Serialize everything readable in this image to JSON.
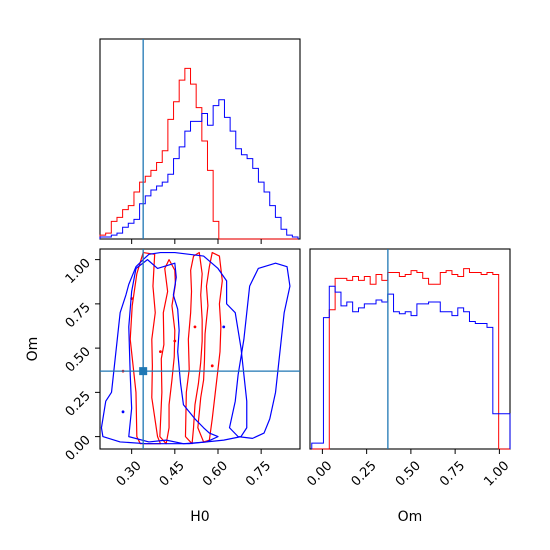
{
  "chart_data": {
    "type": "corner",
    "parameters": [
      "H0",
      "Om"
    ],
    "truth": {
      "H0": 0.34,
      "Om": 0.37
    },
    "colors": {
      "red": "#ff0000",
      "blue": "#0000ff",
      "truth": "#1f77b4"
    },
    "xlabels": {
      "H0": "H0",
      "Om": "Om"
    },
    "ylabel": "Om",
    "ranges": {
      "H0": [
        0.19,
        0.885
      ],
      "Om": [
        -0.07,
        1.06
      ]
    },
    "ticks": {
      "H0": [
        0.3,
        0.45,
        0.6,
        0.75
      ],
      "H0_labels": [
        "0.30",
        "0.45",
        "0.60",
        "0.75"
      ],
      "Om_x": [
        0.0,
        0.25,
        0.5,
        0.75,
        1.0
      ],
      "Om_x_labels": [
        "0.00",
        "0.25",
        "0.50",
        "0.75",
        "1.00"
      ],
      "Om_y": [
        0.0,
        0.25,
        0.5,
        0.75,
        1.0
      ],
      "Om_y_labels": [
        "0.00",
        "0.25",
        "0.50",
        "0.75",
        "1.00"
      ]
    },
    "hist_H0": {
      "bin_edges": [
        0.19,
        0.2097,
        0.2293,
        0.249,
        0.2686,
        0.2883,
        0.308,
        0.3276,
        0.3473,
        0.3669,
        0.3866,
        0.4063,
        0.4259,
        0.4456,
        0.4652,
        0.4849,
        0.5046,
        0.5242,
        0.5439,
        0.5635,
        0.5832,
        0.6029,
        0.6225,
        0.6422,
        0.6618,
        0.6815,
        0.7012,
        0.7208,
        0.7405,
        0.7601,
        0.7798,
        0.7995,
        0.8191,
        0.8388,
        0.8584,
        0.8781
      ],
      "red": [
        0.02,
        0.03,
        0.09,
        0.11,
        0.15,
        0.17,
        0.24,
        0.29,
        0.32,
        0.35,
        0.39,
        0.45,
        0.61,
        0.7,
        0.81,
        0.87,
        0.79,
        0.67,
        0.5,
        0.35,
        0.09,
        0.0,
        0.0,
        0.0,
        0.0,
        0.0,
        0.0,
        0.0,
        0.0,
        0.0,
        0.0,
        0.0,
        0.0,
        0.0,
        0.0
      ],
      "blue": [
        0.01,
        0.01,
        0.02,
        0.03,
        0.06,
        0.08,
        0.1,
        0.18,
        0.22,
        0.25,
        0.27,
        0.29,
        0.33,
        0.41,
        0.47,
        0.55,
        0.6,
        0.6,
        0.64,
        0.58,
        0.68,
        0.71,
        0.62,
        0.55,
        0.46,
        0.43,
        0.41,
        0.36,
        0.29,
        0.24,
        0.17,
        0.11,
        0.05,
        0.02,
        0.01
      ]
    },
    "hist_Om": {
      "bin_edges": [
        -0.06,
        -0.027,
        0.006,
        0.039,
        0.072,
        0.105,
        0.138,
        0.171,
        0.204,
        0.237,
        0.27,
        0.303,
        0.336,
        0.369,
        0.402,
        0.435,
        0.468,
        0.501,
        0.534,
        0.567,
        0.6,
        0.633,
        0.666,
        0.699,
        0.732,
        0.765,
        0.798,
        0.831,
        0.864,
        0.897,
        0.93,
        0.963,
        0.996,
        1.029,
        1.06
      ],
      "red": [
        0.0,
        0.0,
        0.0,
        0.71,
        0.87,
        0.87,
        0.86,
        0.88,
        0.86,
        0.88,
        0.84,
        0.89,
        0.86,
        0.9,
        0.9,
        0.88,
        0.89,
        0.91,
        0.9,
        0.87,
        0.84,
        0.84,
        0.9,
        0.91,
        0.89,
        0.88,
        0.92,
        0.9,
        0.9,
        0.89,
        0.9,
        0.89,
        0.0,
        0.0
      ],
      "blue": [
        0.03,
        0.03,
        0.67,
        0.83,
        0.8,
        0.73,
        0.75,
        0.7,
        0.72,
        0.74,
        0.74,
        0.76,
        0.75,
        0.79,
        0.7,
        0.69,
        0.7,
        0.68,
        0.74,
        0.74,
        0.75,
        0.75,
        0.7,
        0.7,
        0.68,
        0.72,
        0.7,
        0.65,
        0.64,
        0.64,
        0.62,
        0.18,
        0.18,
        0.18
      ]
    },
    "contours": {
      "red": [
        [
          [
            0.318,
            0.0
          ],
          [
            0.315,
            0.25
          ],
          [
            0.295,
            0.55
          ],
          [
            0.302,
            0.74
          ],
          [
            0.318,
            0.92
          ],
          [
            0.34,
            1.04
          ],
          [
            0.38,
            1.03
          ],
          [
            0.374,
            0.85
          ],
          [
            0.382,
            0.7
          ],
          [
            0.37,
            0.55
          ],
          [
            0.372,
            0.4
          ],
          [
            0.37,
            0.22
          ],
          [
            0.39,
            0.0
          ],
          [
            0.4,
            -0.04
          ],
          [
            0.33,
            -0.04
          ],
          [
            0.318,
            0.0
          ]
        ],
        [
          [
            0.398,
            0.0
          ],
          [
            0.405,
            0.25
          ],
          [
            0.403,
            0.44
          ],
          [
            0.412,
            0.52
          ],
          [
            0.41,
            0.7
          ],
          [
            0.425,
            0.82
          ],
          [
            0.415,
            0.95
          ],
          [
            0.43,
            1.0
          ],
          [
            0.45,
            0.94
          ],
          [
            0.452,
            0.86
          ],
          [
            0.44,
            0.74
          ],
          [
            0.45,
            0.6
          ],
          [
            0.448,
            0.45
          ],
          [
            0.44,
            0.32
          ],
          [
            0.43,
            0.18
          ],
          [
            0.43,
            0.05
          ],
          [
            0.42,
            -0.04
          ],
          [
            0.398,
            0.0
          ]
        ],
        [
          [
            0.487,
            0.0
          ],
          [
            0.49,
            0.25
          ],
          [
            0.5,
            0.38
          ],
          [
            0.497,
            0.55
          ],
          [
            0.505,
            0.7
          ],
          [
            0.508,
            0.82
          ],
          [
            0.505,
            0.94
          ],
          [
            0.515,
            1.02
          ],
          [
            0.535,
            1.04
          ],
          [
            0.545,
            0.92
          ],
          [
            0.54,
            0.8
          ],
          [
            0.545,
            0.66
          ],
          [
            0.545,
            0.54
          ],
          [
            0.54,
            0.42
          ],
          [
            0.532,
            0.3
          ],
          [
            0.52,
            0.18
          ],
          [
            0.515,
            0.05
          ],
          [
            0.51,
            -0.04
          ],
          [
            0.487,
            0.0
          ]
        ],
        [
          [
            0.53,
            0.05
          ],
          [
            0.54,
            0.22
          ],
          [
            0.55,
            0.32
          ],
          [
            0.553,
            0.43
          ],
          [
            0.555,
            0.58
          ],
          [
            0.565,
            0.74
          ],
          [
            0.56,
            0.85
          ],
          [
            0.57,
            0.96
          ],
          [
            0.58,
            1.04
          ],
          [
            0.605,
            1.02
          ],
          [
            0.615,
            0.88
          ],
          [
            0.605,
            0.75
          ],
          [
            0.61,
            0.62
          ],
          [
            0.607,
            0.48
          ],
          [
            0.6,
            0.38
          ],
          [
            0.59,
            0.24
          ],
          [
            0.58,
            0.1
          ],
          [
            0.57,
            -0.02
          ],
          [
            0.55,
            -0.03
          ],
          [
            0.53,
            0.05
          ]
        ]
      ],
      "blue": [
        [
          [
            0.29,
            0.0
          ],
          [
            0.3,
            0.16
          ],
          [
            0.295,
            0.35
          ],
          [
            0.29,
            0.62
          ],
          [
            0.3,
            0.82
          ],
          [
            0.315,
            0.95
          ],
          [
            0.355,
            1.0
          ],
          [
            0.39,
            0.95
          ],
          [
            0.45,
            0.98
          ],
          [
            0.455,
            0.9
          ],
          [
            0.445,
            0.8
          ],
          [
            0.46,
            0.72
          ],
          [
            0.465,
            0.6
          ],
          [
            0.46,
            0.48
          ],
          [
            0.47,
            0.3
          ],
          [
            0.48,
            0.18
          ],
          [
            0.52,
            0.1
          ],
          [
            0.55,
            0.05
          ],
          [
            0.57,
            0.02
          ],
          [
            0.6,
            0.0
          ],
          [
            0.56,
            -0.03
          ],
          [
            0.48,
            -0.04
          ],
          [
            0.42,
            -0.02
          ],
          [
            0.36,
            -0.03
          ],
          [
            0.29,
            0.0
          ]
        ],
        [
          [
            0.195,
            0.05
          ],
          [
            0.21,
            0.2
          ],
          [
            0.23,
            0.25
          ],
          [
            0.24,
            0.4
          ],
          [
            0.25,
            0.55
          ],
          [
            0.26,
            0.7
          ],
          [
            0.28,
            0.8
          ],
          [
            0.29,
            0.86
          ],
          [
            0.315,
            0.96
          ],
          [
            0.34,
            1.0
          ],
          [
            0.36,
            1.03
          ],
          [
            0.4,
            1.04
          ],
          [
            0.45,
            1.04
          ],
          [
            0.5,
            1.03
          ],
          [
            0.55,
            1.02
          ],
          [
            0.6,
            0.95
          ],
          [
            0.63,
            0.88
          ],
          [
            0.63,
            0.75
          ],
          [
            0.66,
            0.7
          ],
          [
            0.67,
            0.6
          ],
          [
            0.68,
            0.5
          ],
          [
            0.69,
            0.35
          ],
          [
            0.7,
            0.2
          ],
          [
            0.7,
            0.05
          ],
          [
            0.68,
            0.0
          ],
          [
            0.62,
            -0.02
          ],
          [
            0.5,
            -0.04
          ],
          [
            0.35,
            -0.04
          ],
          [
            0.26,
            -0.03
          ],
          [
            0.2,
            0.0
          ],
          [
            0.195,
            0.05
          ]
        ],
        [
          [
            0.64,
            0.05
          ],
          [
            0.66,
            0.2
          ],
          [
            0.67,
            0.35
          ],
          [
            0.69,
            0.55
          ],
          [
            0.7,
            0.7
          ],
          [
            0.71,
            0.85
          ],
          [
            0.74,
            0.95
          ],
          [
            0.8,
            0.98
          ],
          [
            0.84,
            0.96
          ],
          [
            0.85,
            0.85
          ],
          [
            0.83,
            0.7
          ],
          [
            0.82,
            0.55
          ],
          [
            0.81,
            0.4
          ],
          [
            0.8,
            0.25
          ],
          [
            0.78,
            0.1
          ],
          [
            0.76,
            0.02
          ],
          [
            0.72,
            -0.01
          ],
          [
            0.67,
            0.0
          ],
          [
            0.64,
            0.05
          ]
        ]
      ]
    },
    "markers": {
      "red": [
        [
          0.27,
          0.37
        ],
        [
          0.45,
          0.54
        ],
        [
          0.58,
          0.4
        ],
        [
          0.52,
          0.62
        ],
        [
          0.3,
          0.78
        ],
        [
          0.4,
          0.48
        ]
      ],
      "blue": [
        [
          0.34,
          0.37
        ],
        [
          0.27,
          0.14
        ],
        [
          0.62,
          0.62
        ]
      ]
    }
  }
}
